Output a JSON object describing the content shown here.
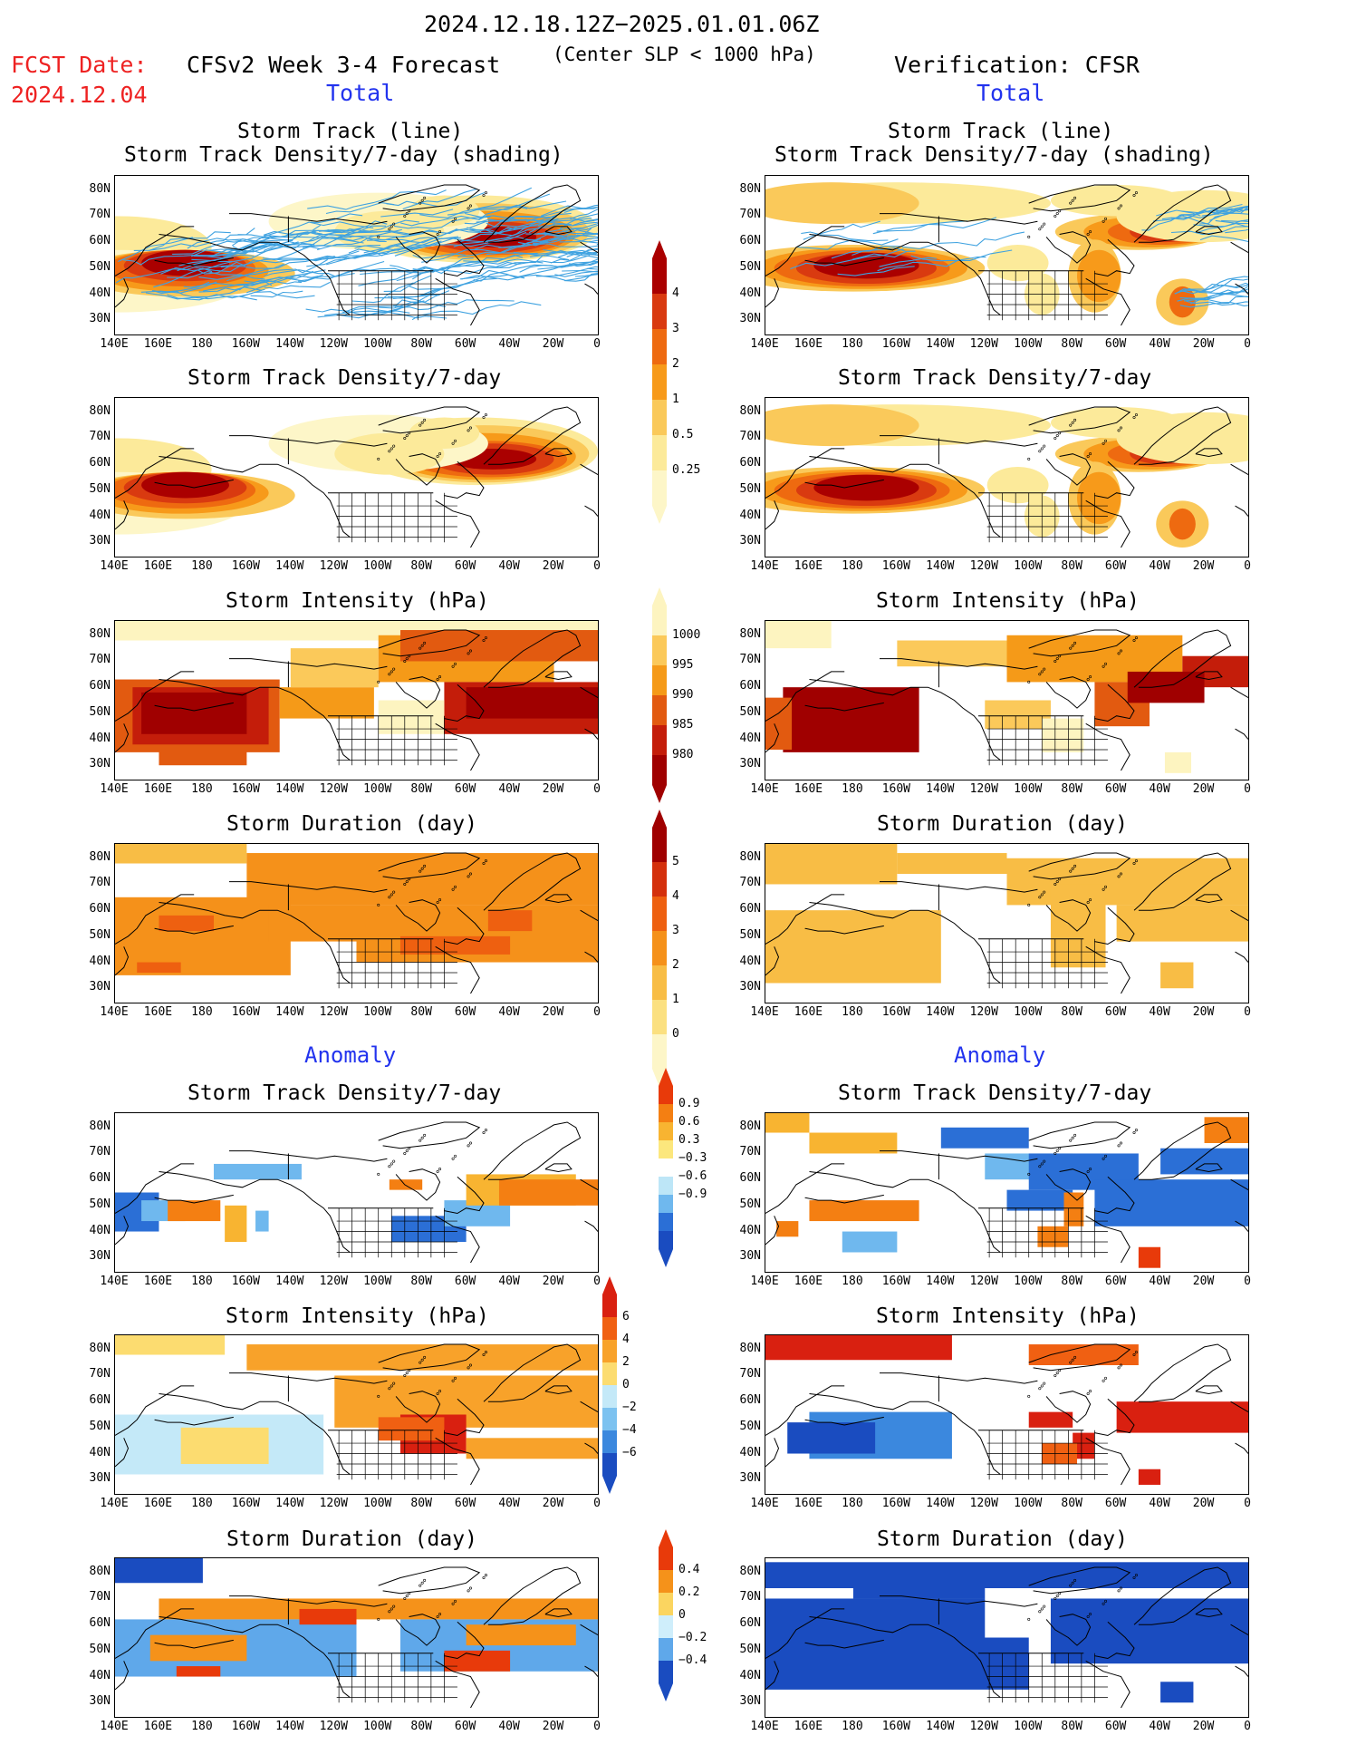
{
  "header": {
    "time_range": "2024.12.18.12Z−2025.01.01.06Z",
    "fcst_label": "FCST Date:",
    "fcst_date": "2024.12.04",
    "model_title": "CFSv2 Week 3-4 Forecast",
    "criterion": "(Center SLP < 1000 hPa)",
    "verification": "Verification: CFSR"
  },
  "sections": {
    "total": "Total",
    "anomaly": "Anomaly"
  },
  "panel_titles": {
    "track_line": "Storm Track (line)",
    "track_shading": "Storm Track Density/7-day (shading)",
    "density": "Storm Track Density/7-day",
    "intensity": "Storm Intensity (hPa)",
    "duration": "Storm Duration (day)"
  },
  "axes": {
    "lat_labels": [
      "80N",
      "70N",
      "60N",
      "50N",
      "40N",
      "30N"
    ],
    "lon_labels": [
      "140E",
      "160E",
      "180",
      "160W",
      "140W",
      "120W",
      "100W",
      "80W",
      "60W",
      "40W",
      "20W",
      "0"
    ]
  },
  "colorbars": {
    "density": {
      "labels": [
        "4",
        "3",
        "2",
        "1",
        "0.5",
        "0.25"
      ],
      "colors": [
        "#aa0000",
        "#d93a10",
        "#ee6a10",
        "#f79a1a",
        "#fac95a",
        "#fcea9a",
        "#fdf6c8"
      ]
    },
    "intensity": {
      "labels": [
        "1000",
        "995",
        "990",
        "985",
        "980"
      ],
      "colors": [
        "#fdf4c0",
        "#fbc95a",
        "#f59a18",
        "#e25a10",
        "#c41d0a",
        "#a00000"
      ]
    },
    "duration": {
      "labels": [
        "5",
        "4",
        "3",
        "2",
        "1",
        "0"
      ],
      "colors": [
        "#a00000",
        "#d4300c",
        "#ee6010",
        "#f5911a",
        "#f8bd45",
        "#fbe080",
        "#fdf6c8"
      ]
    },
    "anom_density": {
      "labels": [
        "0.9",
        "0.6",
        "0.3",
        "−0.3",
        "−0.6",
        "−0.9"
      ],
      "colors": [
        "#e83a0a",
        "#f47f12",
        "#f8b431",
        "#fce77d",
        "#ffffff",
        "#bde6f7",
        "#6fb8ee",
        "#2b6fd6",
        "#1a4cc0"
      ]
    },
    "anom_intensity": {
      "labels": [
        "6",
        "4",
        "2",
        "0",
        "−2",
        "−4",
        "−6"
      ],
      "colors": [
        "#d92010",
        "#f06012",
        "#f8a22a",
        "#fcdc70",
        "#c4e9f8",
        "#7cc2f0",
        "#3b88de",
        "#1a4cc0"
      ]
    },
    "anom_duration": {
      "labels": [
        "0.4",
        "0.2",
        "0",
        "−0.2",
        "−0.4"
      ],
      "colors": [
        "#e83a0a",
        "#f5921a",
        "#fbd560",
        "#cfeefb",
        "#5fa8ea",
        "#1a4cc0"
      ]
    }
  }
}
